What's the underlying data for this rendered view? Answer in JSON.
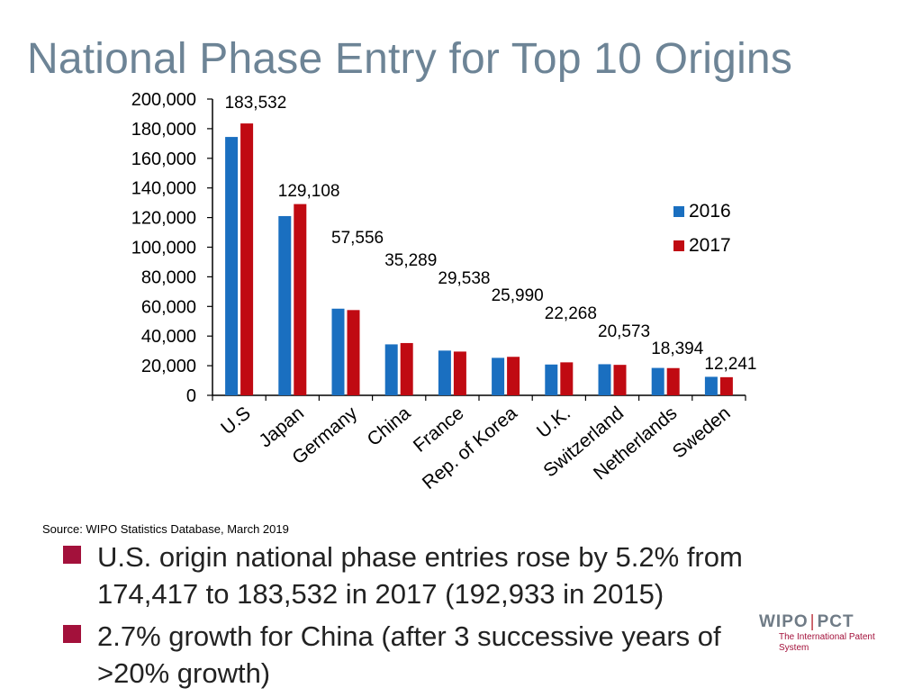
{
  "title": "National Phase Entry for Top 10 Origins",
  "source": "Source:  WIPO Statistics Database, March 2019",
  "bullets": [
    "U.S. origin national phase entries rose by 5.2% from 174,417 to 183,532 in 2017 (192,933 in 2015)",
    "2.7% growth for China (after 3 successive years of >20% growth)"
  ],
  "logo": {
    "name_left": "WIPO",
    "name_sep": "|",
    "name_right": "PCT",
    "subtitle": "The International Patent System"
  },
  "colors": {
    "s2016": "#1a6fc0",
    "s2017": "#c00a12",
    "title": "#6d8496",
    "bullet": "#a3113b"
  },
  "chart_data": {
    "type": "bar",
    "categories": [
      "U.S",
      "Japan",
      "Germany",
      "China",
      "France",
      "Rep. of Korea",
      "U.K.",
      "Switzerland",
      "Netherlands",
      "Sweden"
    ],
    "series": [
      {
        "name": "2016",
        "values": [
          174417,
          121000,
          58500,
          34400,
          30200,
          25300,
          20800,
          21000,
          18500,
          12500
        ]
      },
      {
        "name": "2017",
        "values": [
          183532,
          129108,
          57556,
          35289,
          29538,
          25990,
          22268,
          20573,
          18394,
          12241
        ]
      }
    ],
    "data_labels": [
      "183,532",
      "129,108",
      "57,556",
      "35,289",
      "29,538",
      "25,990",
      "22,268",
      "20,573",
      "18,394",
      "12,241"
    ],
    "y_ticks": [
      "0",
      "20,000",
      "40,000",
      "60,000",
      "80,000",
      "100,000",
      "120,000",
      "140,000",
      "160,000",
      "180,000",
      "200,000"
    ],
    "ylim": [
      0,
      200000
    ],
    "legend_position": "right",
    "grid": false
  }
}
